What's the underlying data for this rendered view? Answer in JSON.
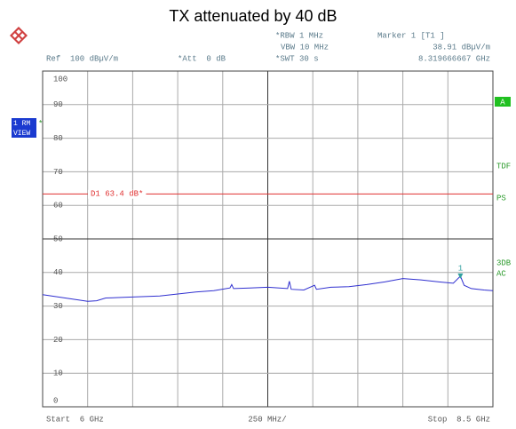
{
  "chart_data": {
    "type": "line",
    "title": "TX attenuated by 40 dB",
    "header": {
      "rbw": "*RBW 1 MHz",
      "vbw": "VBW 10 MHz",
      "swt": "*SWT 30 s",
      "ref": "Ref  100 dBµV/m",
      "att": "*Att  0 dB",
      "marker_title": "Marker 1 [T1 ]",
      "marker_level": "38.91 dBµV/m",
      "marker_freq": "8.319666667 GHz"
    },
    "left_badge": [
      "1 RM",
      "VIEW"
    ],
    "left_flag": "*",
    "right_labels": {
      "a": "A",
      "tdf": "TDF",
      "ps": "PS",
      "db3": "3DB",
      "ac": "AC"
    },
    "footer": {
      "start": "Start  6 GHz",
      "span": "250 MHz/",
      "stop": "Stop  8.5 GHz"
    },
    "x": [
      6.0,
      6.1,
      6.2,
      6.25,
      6.3,
      6.35,
      6.45,
      6.55,
      6.65,
      6.75,
      6.85,
      6.95,
      7.04,
      7.05,
      7.06,
      7.15,
      7.25,
      7.36,
      7.37,
      7.38,
      7.45,
      7.51,
      7.52,
      7.6,
      7.7,
      7.8,
      7.9,
      8.0,
      8.1,
      8.2,
      8.28,
      8.319666667,
      8.34,
      8.38,
      8.45,
      8.5
    ],
    "values": [
      33.4,
      32.6,
      31.8,
      31.4,
      31.6,
      32.4,
      32.6,
      32.8,
      33.0,
      33.6,
      34.2,
      34.6,
      35.4,
      36.4,
      35.2,
      35.4,
      35.6,
      35.2,
      37.4,
      35.0,
      34.8,
      36.2,
      35.0,
      35.6,
      35.8,
      36.4,
      37.2,
      38.2,
      37.8,
      37.2,
      36.8,
      38.91,
      36.2,
      35.2,
      34.8,
      34.6
    ],
    "color": "#3030d0",
    "marker": {
      "label": "1",
      "x": 8.319666667,
      "y": 38.91,
      "color": "#30a0a0"
    },
    "reference_line": {
      "label": "D1 63.4 dB*",
      "value": 63.4,
      "color": "#e03030"
    },
    "xlim": [
      6,
      8.5
    ],
    "xticks": [
      6,
      6.25,
      6.5,
      6.75,
      7,
      7.25,
      7.5,
      7.75,
      8,
      8.25,
      8.5
    ],
    "ylim": [
      0,
      100
    ],
    "yticks": [
      0,
      10,
      20,
      30,
      40,
      50,
      60,
      70,
      80,
      90,
      100
    ],
    "grid": true
  }
}
